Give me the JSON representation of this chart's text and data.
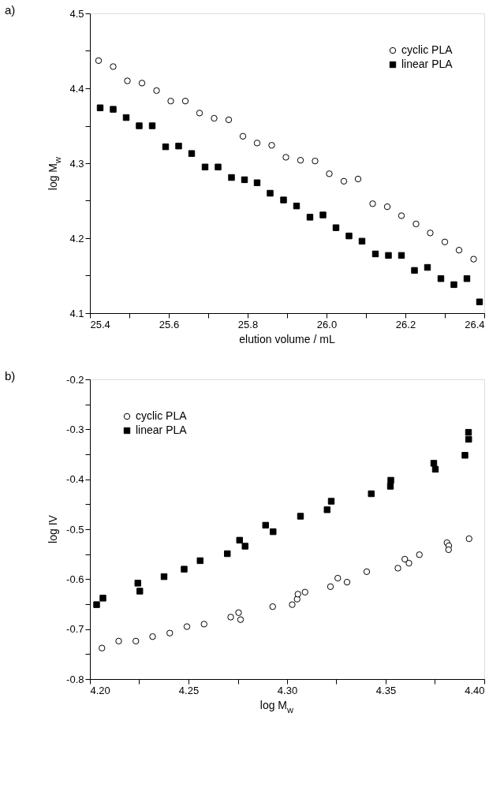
{
  "chart_data": [
    {
      "type": "scatter",
      "title": "a)",
      "xlabel": "elution volume / mL",
      "ylabel": "log M$_{w}$",
      "legend": "top right",
      "grid": false,
      "xlim": [
        25.4,
        26.4
      ],
      "xticks": [
        25.4,
        {
          "value": 25.5,
          "label": null
        },
        25.6,
        {
          "value": 25.7,
          "label": null
        },
        25.8,
        {
          "value": 25.9,
          "label": null
        },
        {
          "value": 26.0,
          "label": "26.0"
        },
        {
          "value": 26.1,
          "label": null
        },
        26.2,
        {
          "value": 26.3,
          "label": null
        },
        26.4
      ],
      "ylim": [
        4.1,
        4.5
      ],
      "yticks": [
        4.1,
        {
          "value": 4.15,
          "label": null
        },
        4.2,
        {
          "value": 4.25,
          "label": null
        },
        4.3,
        {
          "value": 4.35,
          "label": null
        },
        4.4,
        {
          "value": 4.45,
          "label": null
        },
        4.5
      ],
      "series": [
        {
          "name": "cyclic PLA",
          "color": "#000000",
          "marker": "circle",
          "x": [
            25.422,
            25.459,
            25.495,
            25.532,
            25.569,
            25.605,
            25.642,
            25.678,
            25.715,
            25.752,
            25.788,
            25.824,
            25.861,
            25.897,
            25.934,
            25.971,
            26.007,
            26.044,
            26.08,
            26.117,
            26.154,
            26.19,
            26.227,
            26.263,
            26.3,
            26.336,
            26.373
          ],
          "values": [
            4.437,
            4.429,
            4.41,
            4.407,
            4.397,
            4.383,
            4.383,
            4.367,
            4.36,
            4.358,
            4.336,
            4.327,
            4.324,
            4.308,
            4.304,
            4.303,
            4.286,
            4.276,
            4.279,
            4.246,
            4.242,
            4.23,
            4.219,
            4.207,
            4.195,
            4.184,
            4.172
          ]
        },
        {
          "name": "linear PLA",
          "color": "#000000",
          "marker": "square",
          "x": [
            25.426,
            25.459,
            25.492,
            25.525,
            25.558,
            25.592,
            25.625,
            25.658,
            25.692,
            25.725,
            25.759,
            25.792,
            25.824,
            25.857,
            25.891,
            25.924,
            25.958,
            25.991,
            26.024,
            26.057,
            26.09,
            26.124,
            26.157,
            26.19,
            26.223,
            26.256,
            26.29,
            26.323,
            26.356,
            26.388
          ],
          "values": [
            4.374,
            4.372,
            4.361,
            4.35,
            4.35,
            4.322,
            4.323,
            4.313,
            4.295,
            4.295,
            4.281,
            4.278,
            4.274,
            4.26,
            4.251,
            4.243,
            4.228,
            4.231,
            4.214,
            4.203,
            4.196,
            4.179,
            4.177,
            4.177,
            4.157,
            4.161,
            4.146,
            4.138,
            4.146,
            4.115
          ]
        }
      ]
    },
    {
      "type": "scatter",
      "title": "b)",
      "xlabel": "log M$_{w}$",
      "ylabel": "log IV",
      "legend": "top left",
      "grid": false,
      "xlim": [
        4.2,
        4.4
      ],
      "xticks": [
        {
          "value": 4.2,
          "label": "4.20"
        },
        {
          "value": 4.225,
          "label": null
        },
        4.25,
        {
          "value": 4.275,
          "label": null
        },
        {
          "value": 4.3,
          "label": "4.30"
        },
        {
          "value": 4.325,
          "label": null
        },
        4.35,
        {
          "value": 4.375,
          "label": null
        },
        {
          "value": 4.4,
          "label": "4.40"
        }
      ],
      "ylim": [
        -0.8,
        -0.2
      ],
      "yticks": [
        -0.8,
        {
          "value": -0.75,
          "label": null
        },
        -0.7,
        {
          "value": -0.65,
          "label": null
        },
        -0.6,
        {
          "value": -0.55,
          "label": null
        },
        -0.5,
        {
          "value": -0.45,
          "label": null
        },
        -0.4,
        {
          "value": -0.35,
          "label": null
        },
        -0.3,
        {
          "value": -0.25,
          "label": null
        },
        -0.2
      ],
      "series": [
        {
          "name": "cyclic PLA",
          "color": "#000000",
          "marker": "circle",
          "x": [
            4.2061,
            4.2146,
            4.2233,
            4.2318,
            4.2405,
            4.2492,
            4.2579,
            4.2714,
            4.2754,
            4.2764,
            4.2927,
            4.3026,
            4.3051,
            4.3055,
            4.3091,
            4.322,
            4.3257,
            4.3304,
            4.3404,
            4.3562,
            4.3597,
            4.3618,
            4.3671,
            4.3811,
            4.382,
            4.3819,
            4.3923
          ],
          "values": [
            -0.738,
            -0.724,
            -0.724,
            -0.715,
            -0.708,
            -0.695,
            -0.69,
            -0.676,
            -0.667,
            -0.681,
            -0.655,
            -0.651,
            -0.64,
            -0.63,
            -0.626,
            -0.615,
            -0.598,
            -0.606,
            -0.585,
            -0.578,
            -0.56,
            -0.568,
            -0.551,
            -0.527,
            -0.533,
            -0.541,
            -0.519
          ]
        },
        {
          "name": "linear PLA",
          "color": "#000000",
          "marker": "square",
          "x": [
            4.2034,
            4.2066,
            4.2243,
            4.2253,
            4.2376,
            4.2478,
            4.2559,
            4.2697,
            4.2759,
            4.2787,
            4.2891,
            4.2929,
            4.3068,
            4.3203,
            4.3224,
            4.3427,
            4.3524,
            4.3526,
            4.3744,
            4.3752,
            4.3902,
            4.3921,
            4.392
          ],
          "values": [
            -0.651,
            -0.638,
            -0.608,
            -0.624,
            -0.595,
            -0.58,
            -0.563,
            -0.549,
            -0.522,
            -0.534,
            -0.492,
            -0.505,
            -0.474,
            -0.461,
            -0.444,
            -0.429,
            -0.414,
            -0.402,
            -0.368,
            -0.38,
            -0.352,
            -0.32,
            -0.306
          ]
        }
      ]
    }
  ]
}
